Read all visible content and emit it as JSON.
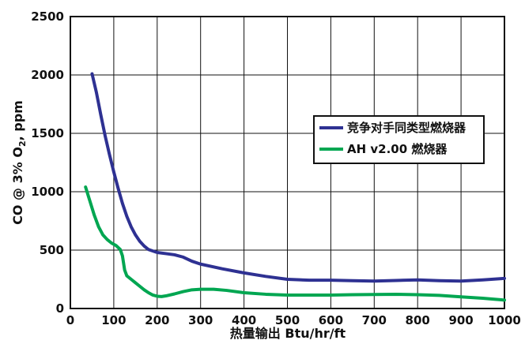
{
  "chart_data": {
    "type": "line",
    "title": "",
    "xlabel": "热量输出 Btu/hr/ft",
    "ylabel": {
      "prefix": "CO @ 3% O",
      "subscript": "2",
      "suffix": ", ppm"
    },
    "xlim": [
      0,
      1000
    ],
    "ylim": [
      0,
      2500
    ],
    "xticks": [
      0,
      100,
      200,
      300,
      400,
      500,
      600,
      700,
      800,
      900,
      1000
    ],
    "yticks": [
      0,
      500,
      1000,
      1500,
      2000,
      2500
    ],
    "grid": true,
    "legend_position": "right",
    "series": [
      {
        "name": "竞争对手同类型燃烧器",
        "color": "#2e3192",
        "points": [
          [
            50,
            2010
          ],
          [
            60,
            1850
          ],
          [
            70,
            1660
          ],
          [
            80,
            1480
          ],
          [
            90,
            1320
          ],
          [
            100,
            1170
          ],
          [
            110,
            1030
          ],
          [
            120,
            900
          ],
          [
            130,
            790
          ],
          [
            140,
            700
          ],
          [
            150,
            630
          ],
          [
            160,
            575
          ],
          [
            170,
            535
          ],
          [
            180,
            505
          ],
          [
            200,
            480
          ],
          [
            220,
            470
          ],
          [
            240,
            460
          ],
          [
            260,
            440
          ],
          [
            280,
            405
          ],
          [
            300,
            380
          ],
          [
            350,
            340
          ],
          [
            400,
            305
          ],
          [
            450,
            275
          ],
          [
            500,
            250
          ],
          [
            550,
            242
          ],
          [
            600,
            242
          ],
          [
            650,
            238
          ],
          [
            700,
            235
          ],
          [
            750,
            240
          ],
          [
            800,
            245
          ],
          [
            850,
            238
          ],
          [
            900,
            235
          ],
          [
            950,
            245
          ],
          [
            1000,
            258
          ]
        ]
      },
      {
        "name": "AH v2.00 燃烧器",
        "color": "#00a651",
        "points": [
          [
            35,
            1040
          ],
          [
            45,
            920
          ],
          [
            55,
            800
          ],
          [
            65,
            700
          ],
          [
            75,
            630
          ],
          [
            85,
            590
          ],
          [
            95,
            560
          ],
          [
            105,
            540
          ],
          [
            115,
            505
          ],
          [
            120,
            450
          ],
          [
            125,
            330
          ],
          [
            130,
            280
          ],
          [
            140,
            250
          ],
          [
            150,
            220
          ],
          [
            160,
            190
          ],
          [
            170,
            160
          ],
          [
            180,
            135
          ],
          [
            190,
            115
          ],
          [
            200,
            105
          ],
          [
            210,
            102
          ],
          [
            220,
            108
          ],
          [
            240,
            125
          ],
          [
            260,
            145
          ],
          [
            280,
            160
          ],
          [
            300,
            165
          ],
          [
            330,
            165
          ],
          [
            360,
            155
          ],
          [
            400,
            135
          ],
          [
            450,
            122
          ],
          [
            500,
            115
          ],
          [
            550,
            115
          ],
          [
            600,
            115
          ],
          [
            650,
            118
          ],
          [
            700,
            120
          ],
          [
            750,
            122
          ],
          [
            800,
            118
          ],
          [
            850,
            112
          ],
          [
            900,
            100
          ],
          [
            950,
            88
          ],
          [
            1000,
            72
          ]
        ]
      }
    ]
  }
}
